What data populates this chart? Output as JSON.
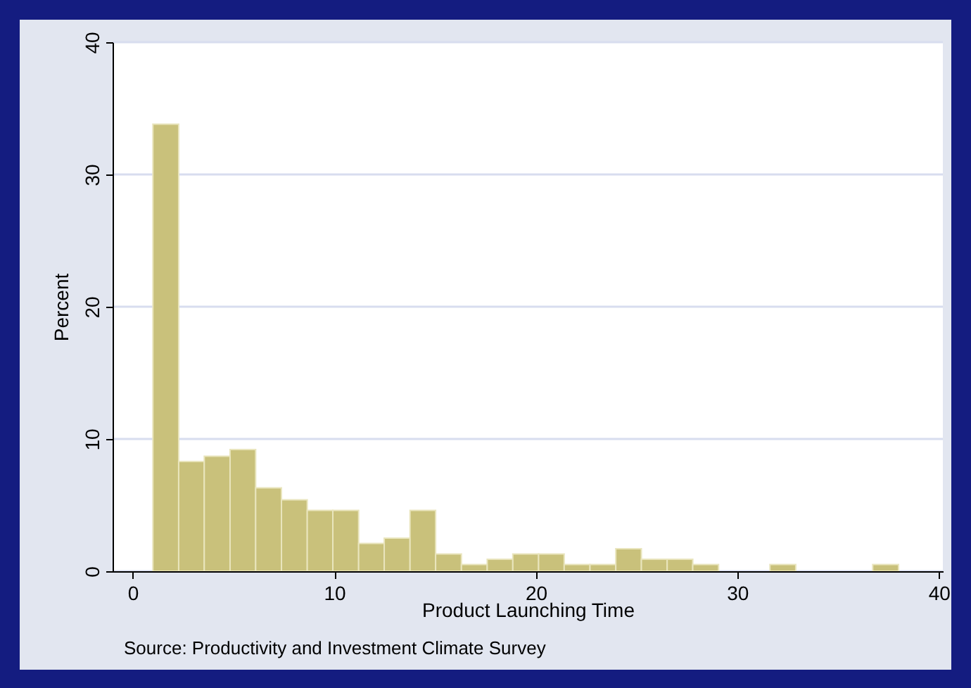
{
  "chart_data": {
    "type": "histogram",
    "xlabel": "Product Launching Time",
    "ylabel": "Percent",
    "annotations": [
      "Source: Productivity and Investment Climate Survey"
    ],
    "bins": [
      1,
      2.28,
      3.55,
      4.83,
      6.1,
      7.38,
      8.66,
      9.93,
      11.21,
      12.48,
      13.76,
      15.03,
      16.31,
      17.59,
      18.86,
      20.14,
      21.41,
      22.69,
      23.97,
      25.24,
      26.52,
      27.79,
      29.07,
      30.34,
      31.62,
      32.9,
      34.17,
      35.45,
      36.72,
      38
    ],
    "values": [
      33.8,
      8.3,
      8.7,
      9.2,
      6.3,
      5.4,
      4.6,
      4.6,
      2.1,
      2.5,
      4.6,
      1.3,
      0.5,
      0.9,
      1.3,
      1.3,
      0.5,
      0.5,
      1.7,
      0.9,
      0.9,
      0.5,
      0,
      0,
      0.5,
      0,
      0,
      0,
      0.5
    ],
    "color": "#c9c17b",
    "xlim": [
      -1,
      40.2
    ],
    "ylim": [
      0,
      40
    ],
    "xticks": [
      0,
      10,
      20,
      30,
      40
    ],
    "yticks": [
      0,
      10,
      20,
      30,
      40
    ],
    "grid": "y"
  }
}
